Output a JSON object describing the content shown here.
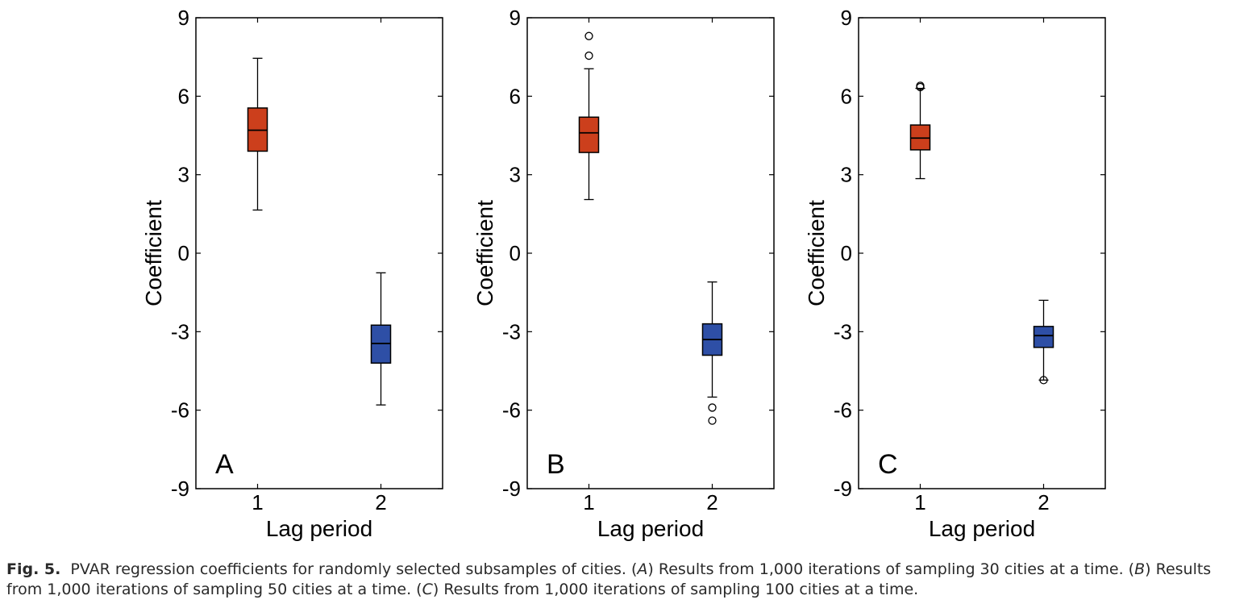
{
  "chart_data": [
    {
      "type": "box",
      "panel": "A",
      "xlabel": "Lag period",
      "ylabel": "Coefficient",
      "ylim": [
        -9,
        9
      ],
      "yticks": [
        -9,
        -6,
        -3,
        0,
        3,
        6,
        9
      ],
      "categories": [
        "1",
        "2"
      ],
      "boxes": [
        {
          "category": "1",
          "whisker_low": 1.65,
          "q1": 3.9,
          "median": 4.7,
          "q3": 5.55,
          "whisker_high": 7.45,
          "outliers": [],
          "color": "#cc3f1c"
        },
        {
          "category": "2",
          "whisker_low": -5.8,
          "q1": -4.2,
          "median": -3.45,
          "q3": -2.75,
          "whisker_high": -0.75,
          "outliers": [],
          "color": "#2e4fa6"
        }
      ]
    },
    {
      "type": "box",
      "panel": "B",
      "xlabel": "Lag period",
      "ylabel": "Coefficient",
      "ylim": [
        -9,
        9
      ],
      "yticks": [
        -9,
        -6,
        -3,
        0,
        3,
        6,
        9
      ],
      "categories": [
        "1",
        "2"
      ],
      "boxes": [
        {
          "category": "1",
          "whisker_low": 2.05,
          "q1": 3.85,
          "median": 4.6,
          "q3": 5.2,
          "whisker_high": 7.05,
          "outliers": [
            7.55,
            8.3
          ],
          "color": "#cc3f1c"
        },
        {
          "category": "2",
          "whisker_low": -5.5,
          "q1": -3.9,
          "median": -3.3,
          "q3": -2.7,
          "whisker_high": -1.1,
          "outliers": [
            -5.9,
            -6.4
          ],
          "color": "#2e4fa6"
        }
      ]
    },
    {
      "type": "box",
      "panel": "C",
      "xlabel": "Lag period",
      "ylabel": "Coefficient",
      "ylim": [
        -9,
        9
      ],
      "yticks": [
        -9,
        -6,
        -3,
        0,
        3,
        6,
        9
      ],
      "categories": [
        "1",
        "2"
      ],
      "boxes": [
        {
          "category": "1",
          "whisker_low": 2.85,
          "q1": 3.95,
          "median": 4.4,
          "q3": 4.9,
          "whisker_high": 6.3,
          "outliers": [
            6.35,
            6.4
          ],
          "color": "#cc3f1c"
        },
        {
          "category": "2",
          "whisker_low": -4.85,
          "q1": -3.6,
          "median": -3.15,
          "q3": -2.8,
          "whisker_high": -1.8,
          "outliers": [
            -4.85
          ],
          "color": "#2e4fa6"
        }
      ]
    }
  ],
  "caption": {
    "label": "Fig. 5.",
    "text_1": "PVAR regression coefficients for randomly selected subsamples of cities. (",
    "ref_a": "A",
    "text_2": ") Results from 1,000 iterations of sampling 30 cities at a time. (",
    "ref_b": "B",
    "text_3": ") Results from 1,000 iterations of sampling 50 cities at a time. (",
    "ref_c": "C",
    "text_4": ") Results from 1,000 iterations of sampling 100 cities at a time."
  }
}
